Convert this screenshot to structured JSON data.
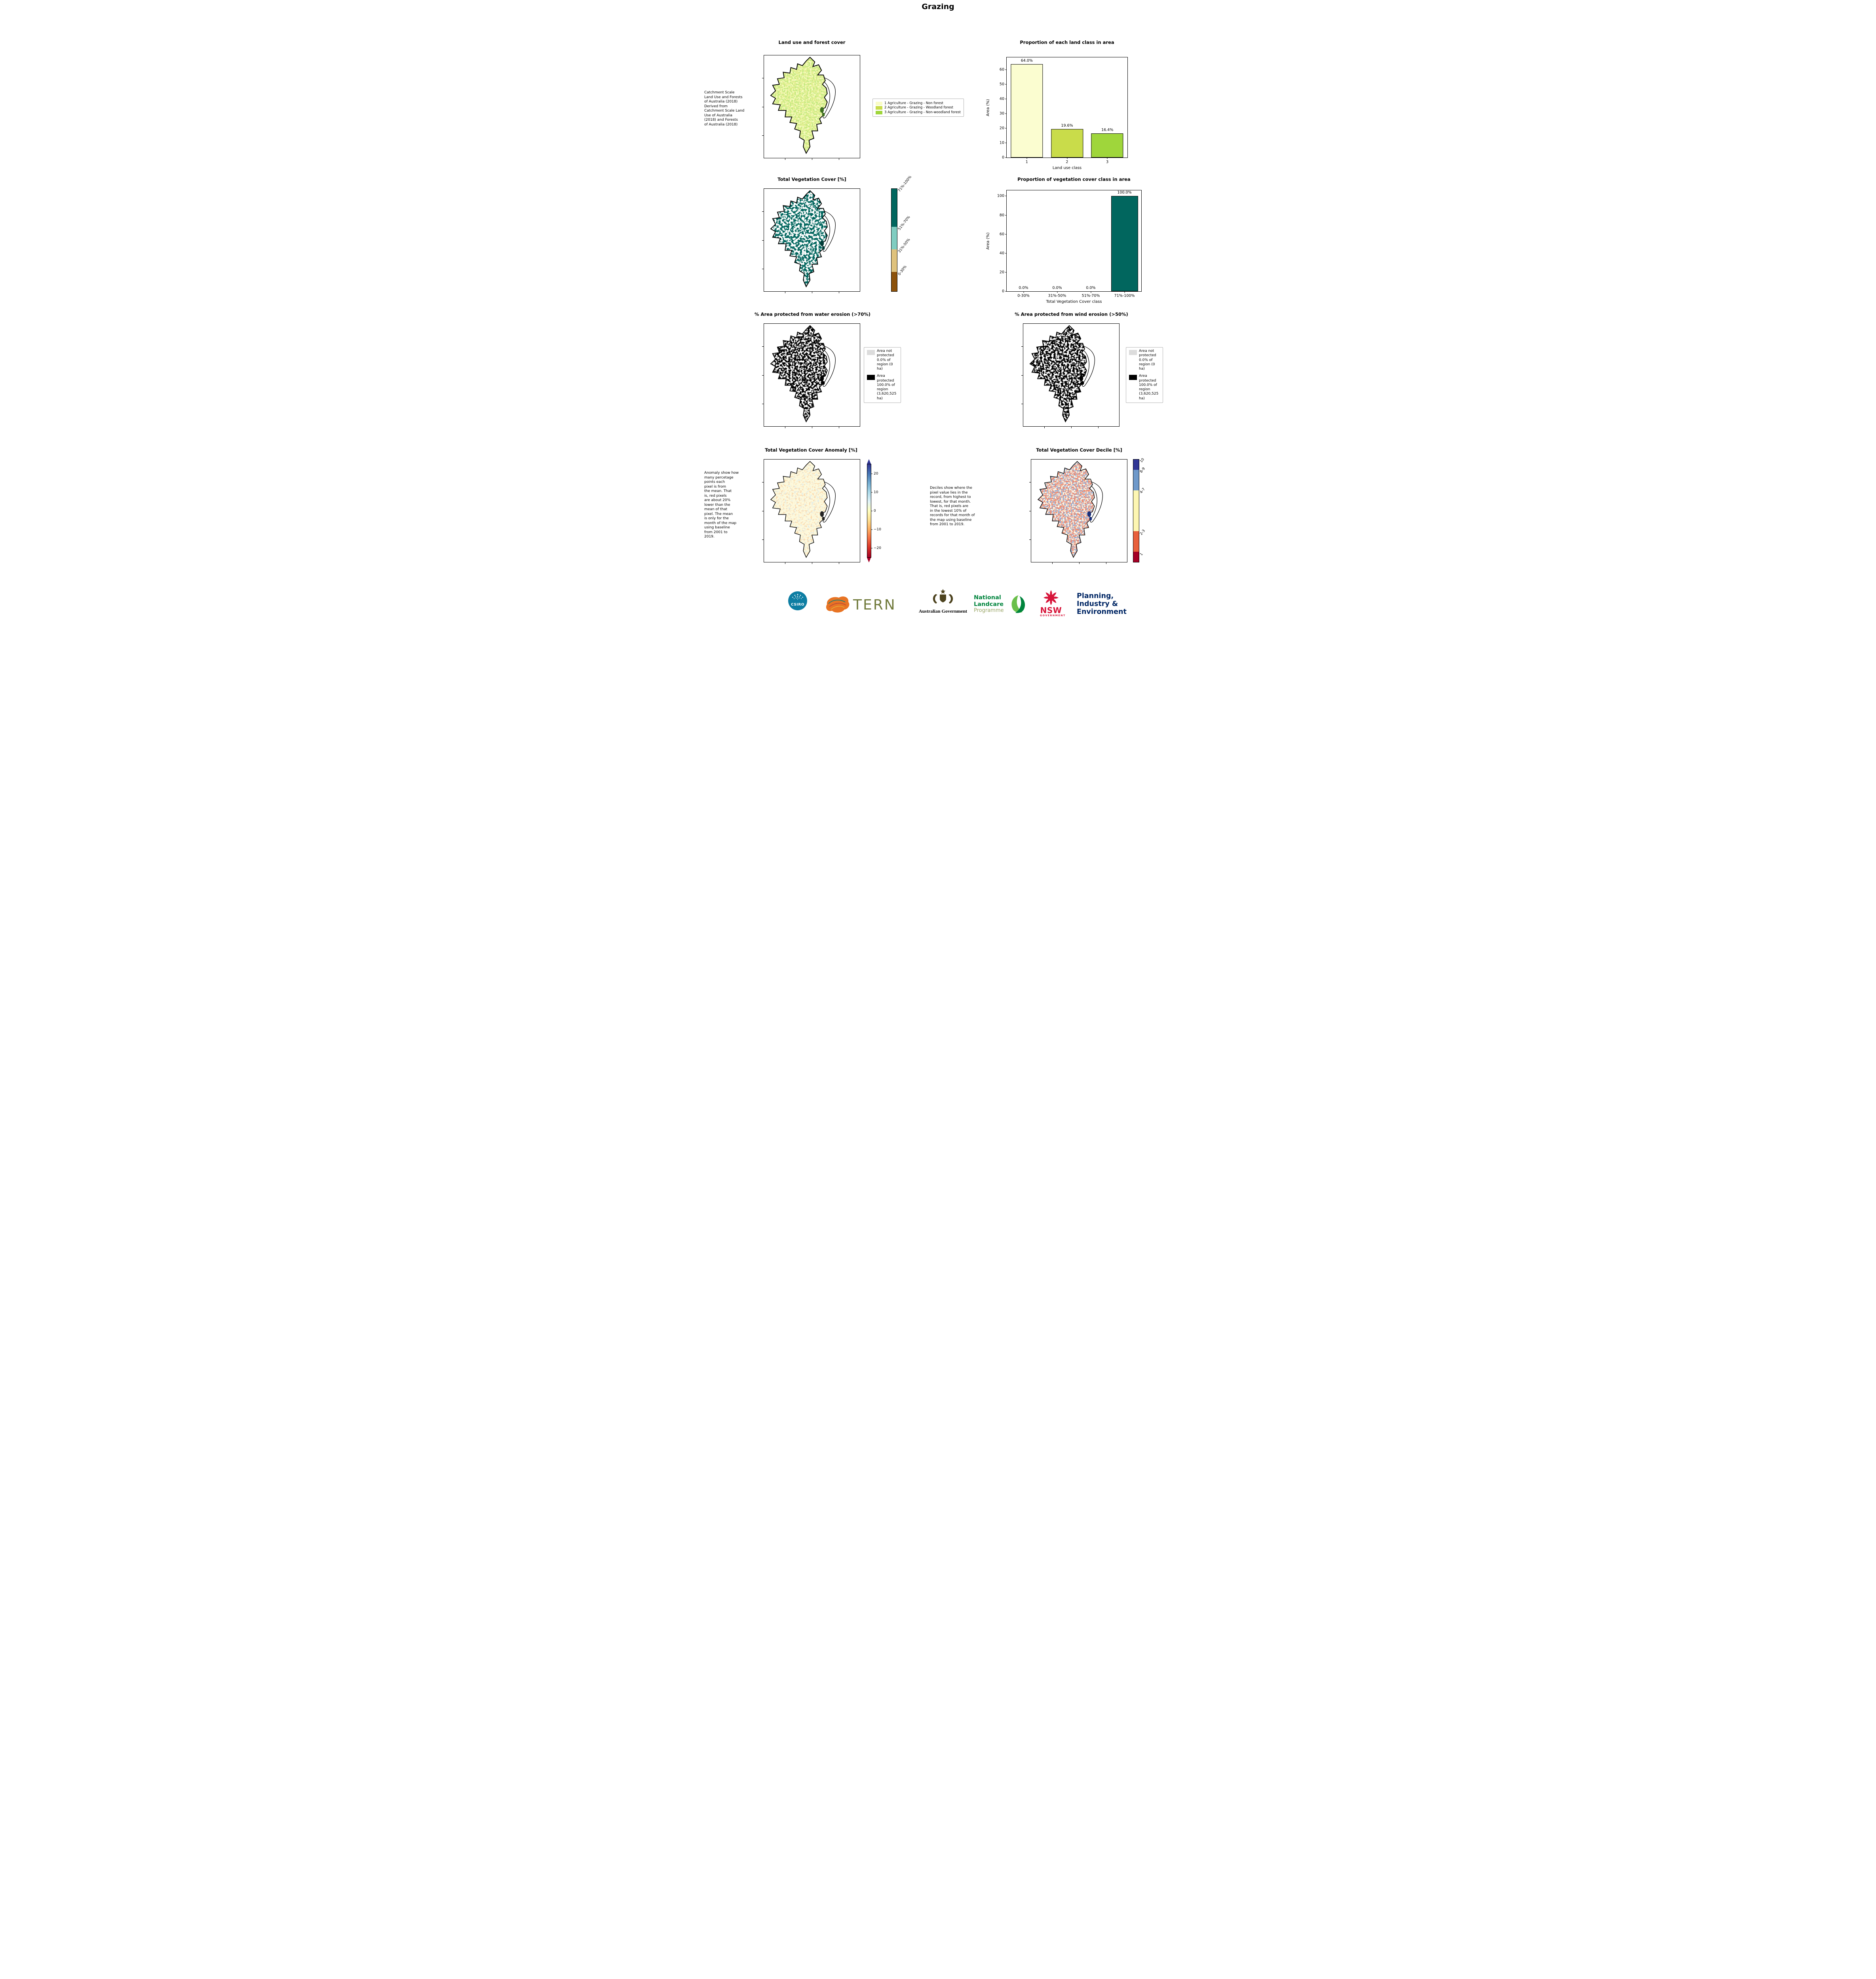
{
  "page_title": "Grazing",
  "panels": {
    "landuse_map": {
      "title": "Land use and forest cover",
      "caption": "Catchment Scale\nLand Use and Forests\nof Australia (2018)\nDerived from\nCatchment Scale Land\nUse of Australia\n(2018) and Forests\nof Australia (2018)",
      "legend": [
        {
          "color": "#f9fcc6",
          "label": "1 Agriculture - Grazing - Non forest"
        },
        {
          "color": "#c9dc4a",
          "label": "2 Agriculture - Grazing - Woodland forest"
        },
        {
          "color": "#9fd63b",
          "label": "3 Agriculture - Grazing - Non-woodland forest"
        }
      ]
    },
    "veg_cover_map": {
      "title": "Total Vegetation Cover [%]",
      "fill": "#01665e",
      "colorbar": {
        "segments": [
          {
            "label": "0-30%",
            "color": "#8c510a",
            "frac": 0.19
          },
          {
            "label": "31%-50%",
            "color": "#dfc27d",
            "frac": 0.22
          },
          {
            "label": "51%-70%",
            "color": "#80cdc1",
            "frac": 0.22
          },
          {
            "label": "71%-100%",
            "color": "#01665e",
            "frac": 0.37
          }
        ]
      }
    },
    "water_erosion_map": {
      "title": "% Area protected from water erosion (>70%)",
      "legend": [
        {
          "color": "#dcdcdc",
          "label": "Area not\nprotected\n0.0% of\nregion (0\nha)"
        },
        {
          "color": "#000000",
          "label": "Area\nprotected\n100.0% of\nregion\n(3,620,525\nha)"
        }
      ]
    },
    "wind_erosion_map": {
      "title": "% Area protected from wind erosion (>50%)",
      "legend": [
        {
          "color": "#dcdcdc",
          "label": "Area not\nprotected\n0.0% of\nregion (0\nha)"
        },
        {
          "color": "#000000",
          "label": "Area\nprotected\n100.0% of\nregion\n(3,620,525\nha)"
        }
      ]
    },
    "anomaly_map": {
      "title": "Total Vegetation Cover Anomaly [%]",
      "caption": "Anomaly show how\nmany percetage\npoints each\npixel is from\nthe mean. That\nis, red pixels\nare about 20%\nlower than the\nmean of that\npixel. The mean\nis only for the\nmonth of the map\nusing baseline\nfrom 2001 to\n2019.",
      "colorbar": {
        "min": -25,
        "max": 25,
        "ticks": [
          20,
          10,
          0,
          -10,
          -20
        ],
        "tick_labels": [
          "20",
          "10",
          "0",
          "−10",
          "−20"
        ],
        "colors_top_to_bottom": [
          "#313695",
          "#4575b4",
          "#74add1",
          "#abd9e9",
          "#e0f3f8",
          "#ffffbf",
          "#fee090",
          "#fdae61",
          "#f46d43",
          "#d73027",
          "#a50026"
        ]
      }
    },
    "decile_map": {
      "title": "Total Vegetation Cover Decile [%]",
      "caption": "Deciles show where the\npixel value lies in the\nrecord, from highest to\nlowest, for that month.\nThat is, red pixels are\nin the lowest 10% of\nrecords for that month of\nthe map using baseline\nfrom 2001 to 2019.",
      "colorbar": {
        "segments": [
          {
            "label": "1",
            "color": "#a50026",
            "frac": 0.1
          },
          {
            "label": "2-3",
            "color": "#e8603c",
            "frac": 0.2
          },
          {
            "label": "4-7",
            "color": "#fdf6b2",
            "frac": 0.4
          },
          {
            "label": "8-9",
            "color": "#6f99ca",
            "frac": 0.2
          },
          {
            "label": "10",
            "color": "#313695",
            "frac": 0.1
          }
        ]
      }
    }
  },
  "chart_data": [
    {
      "id": "land_class",
      "type": "bar",
      "title": "Proportion of each land class in area",
      "xlabel": "Land use class",
      "ylabel": "Area (%)",
      "categories": [
        "1",
        "2",
        "3"
      ],
      "values": [
        64.0,
        19.6,
        16.4
      ],
      "bar_labels": [
        "64.0%",
        "19.6%",
        "16.4%"
      ],
      "bar_colors": [
        "#fbfdd0",
        "#c9dc4a",
        "#9fd63b"
      ],
      "ylim": [
        0,
        68.5
      ],
      "yticks": [
        0,
        10,
        20,
        30,
        40,
        50,
        60
      ],
      "legend_position": "none",
      "grid": false
    },
    {
      "id": "veg_cover_class",
      "type": "bar",
      "title": "Proportion of vegetation cover class in area",
      "xlabel": "Total Vegetation Cover class",
      "ylabel": "Area (%)",
      "categories": [
        "0-30%",
        "31%-50%",
        "51%-70%",
        "71%-100%"
      ],
      "values": [
        0.0,
        0.0,
        0.0,
        100.0
      ],
      "bar_labels": [
        "0.0%",
        "0.0%",
        "0.0%",
        "100.0%"
      ],
      "bar_colors": [
        "#01665e",
        "#01665e",
        "#01665e",
        "#01665e"
      ],
      "ylim": [
        0,
        106
      ],
      "yticks": [
        0,
        20,
        40,
        60,
        80,
        100
      ],
      "legend_position": "none",
      "grid": false
    }
  ],
  "footer": {
    "csiro": {
      "text": "CSIRO",
      "circle_color": "#0e7ea3"
    },
    "tern": {
      "text": "TERN",
      "text_color": "#707a3b",
      "blob_color": "#e87424"
    },
    "australian_government": {
      "text": "Australian Government"
    },
    "landcare": {
      "line1": "National",
      "line2": "Landcare",
      "line3": "Programme",
      "green": "#00843d",
      "muted": "#9aa668"
    },
    "nsw_government": {
      "text": "NSW",
      "subtext": "GOVERNMENT",
      "color": "#d7153a"
    },
    "dpie": {
      "line1": "Planning,",
      "line2": "Industry &",
      "line3": "Environment",
      "color": "#002664"
    }
  }
}
